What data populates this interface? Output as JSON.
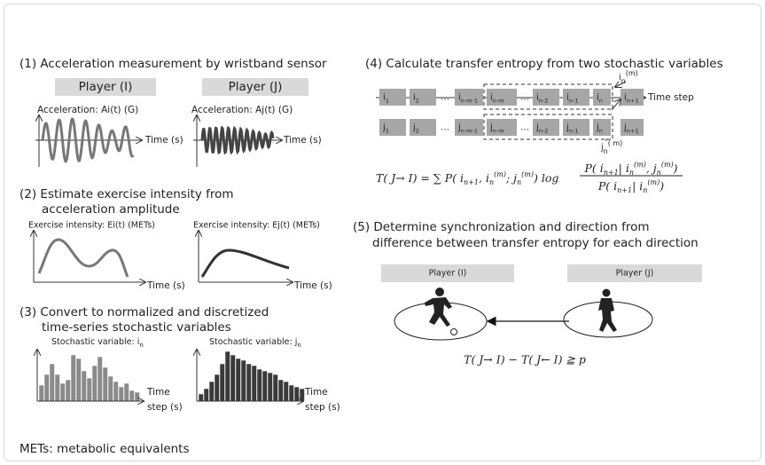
{
  "panel1": {
    "title": "(1) Acceleration measurement by wristband sensor",
    "player_i": "Player (I)",
    "player_j": "Player (J)",
    "label_i": "Acceleration: Ai(t) (G)",
    "label_j": "Acceleration: Aj(t) (G)",
    "xlabel_i": "Time (s)",
    "xlabel_j": "Time (s)"
  },
  "panel2": {
    "title": [
      "(2) Estimate exercise intensity from",
      "acceleration amplitude"
    ],
    "label_i": "Exercise intensity: Ei(t) (METs)",
    "label_j": "Exercise intensity: Ej(t) (METs)",
    "xlabel_i": "Time (s)",
    "xlabel_j": "Time (s)"
  },
  "panel3": {
    "title": [
      "(3) Convert to normalized and discretized",
      "time-series stochastic variables"
    ],
    "label_i": {
      "t": "Stochastic variable: i",
      "sub": "n"
    },
    "label_j": {
      "t": "Stochastic variable: j",
      "sub": "n"
    },
    "xlabel_i": [
      "Time",
      "step (s)"
    ],
    "xlabel_j": [
      "Time",
      "step (s)"
    ]
  },
  "panel4": {
    "title": "(4) Calculate transfer entropy from two stochastic variables",
    "row_i": [
      {
        "t": "i",
        "sub": "1"
      },
      {
        "t": "i",
        "sub": "2"
      },
      {
        "t": "…"
      },
      {
        "t": "i",
        "sub": "n-m-1"
      },
      {
        "t": "i",
        "sub": "n-m"
      },
      {
        "t": "…"
      },
      {
        "t": "i",
        "sub": "n-2"
      },
      {
        "t": "i",
        "sub": "n-1"
      },
      {
        "t": "i",
        "sub": "n"
      },
      {
        "t": "i",
        "sub": "n+1"
      }
    ],
    "row_j": [
      {
        "t": "j",
        "sub": "1"
      },
      {
        "t": "j",
        "sub": "2"
      },
      {
        "t": "…"
      },
      {
        "t": "j",
        "sub": "n-m-1"
      },
      {
        "t": "j",
        "sub": "n-m"
      },
      {
        "t": "…"
      },
      {
        "t": "j",
        "sub": "n-2"
      },
      {
        "t": "j",
        "sub": "n-1"
      },
      {
        "t": "j",
        "sub": "n"
      },
      {
        "t": "j",
        "sub": "n+1"
      }
    ],
    "time_step": "Time step",
    "hist_i": [
      {
        "t": "i"
      },
      {
        "sub": "n"
      },
      {
        "sup": "(m)"
      }
    ],
    "hist_j": [
      {
        "t": "j"
      },
      {
        "sub": "n"
      },
      {
        "sup": "( m)"
      }
    ],
    "formula_lhs": [
      {
        "t": "T( J→ I) = ∑ P( i"
      },
      {
        "sub": "n+1"
      },
      {
        "t": ", i"
      },
      {
        "sub": "n"
      },
      {
        "sup": "(m)"
      },
      {
        "t": "; j"
      },
      {
        "sub": "n"
      },
      {
        "sup": "(m)"
      },
      {
        "t": ") log"
      }
    ],
    "formula_num": [
      {
        "t": "P( i"
      },
      {
        "sub": "n+1"
      },
      {
        "t": "| i"
      },
      {
        "sub": "n"
      },
      {
        "sup": "(m)"
      },
      {
        "t": ", j"
      },
      {
        "sub": "n"
      },
      {
        "sup": "(m)"
      },
      {
        "t": ")"
      }
    ],
    "formula_den": [
      {
        "t": "P( i"
      },
      {
        "sub": "n+1"
      },
      {
        "t": "| i"
      },
      {
        "sub": "n"
      },
      {
        "sup": "(m)"
      },
      {
        "t": ")"
      }
    ]
  },
  "panel5": {
    "title": [
      "(5) Determine synchronization and direction from",
      "difference between transfer entropy for each direction"
    ],
    "player_i": "Player (I)",
    "player_j": "Player (J)",
    "formula": "T( J→ I) − T( J← I) ≧ p"
  },
  "footnote": "METs: metabolic equivalents"
}
